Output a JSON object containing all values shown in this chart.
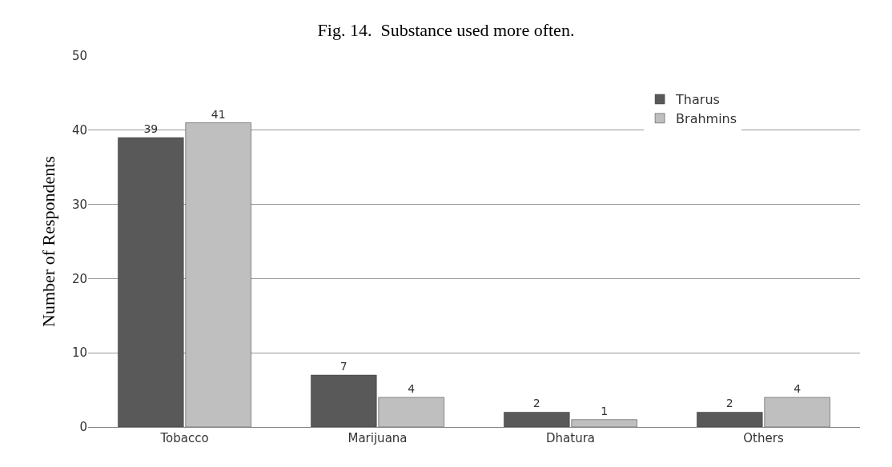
{
  "chart_data": {
    "type": "bar",
    "title": "Fig. 14.  Substance used more often.",
    "ylabel": "Number of Respondents",
    "categories": [
      "Tobacco",
      "Marijuana",
      "Dhatura",
      "Others"
    ],
    "series": [
      {
        "name": "Tharus",
        "color": "#595959",
        "values": [
          39,
          7,
          2,
          2
        ]
      },
      {
        "name": "Brahmins",
        "color": "#bfbfbf",
        "values": [
          41,
          4,
          1,
          4
        ]
      }
    ],
    "ylim": [
      0,
      50
    ],
    "yticks": [
      0,
      10,
      20,
      30,
      40,
      50
    ],
    "grid": "y",
    "legend": "top right",
    "data_labels": true
  }
}
